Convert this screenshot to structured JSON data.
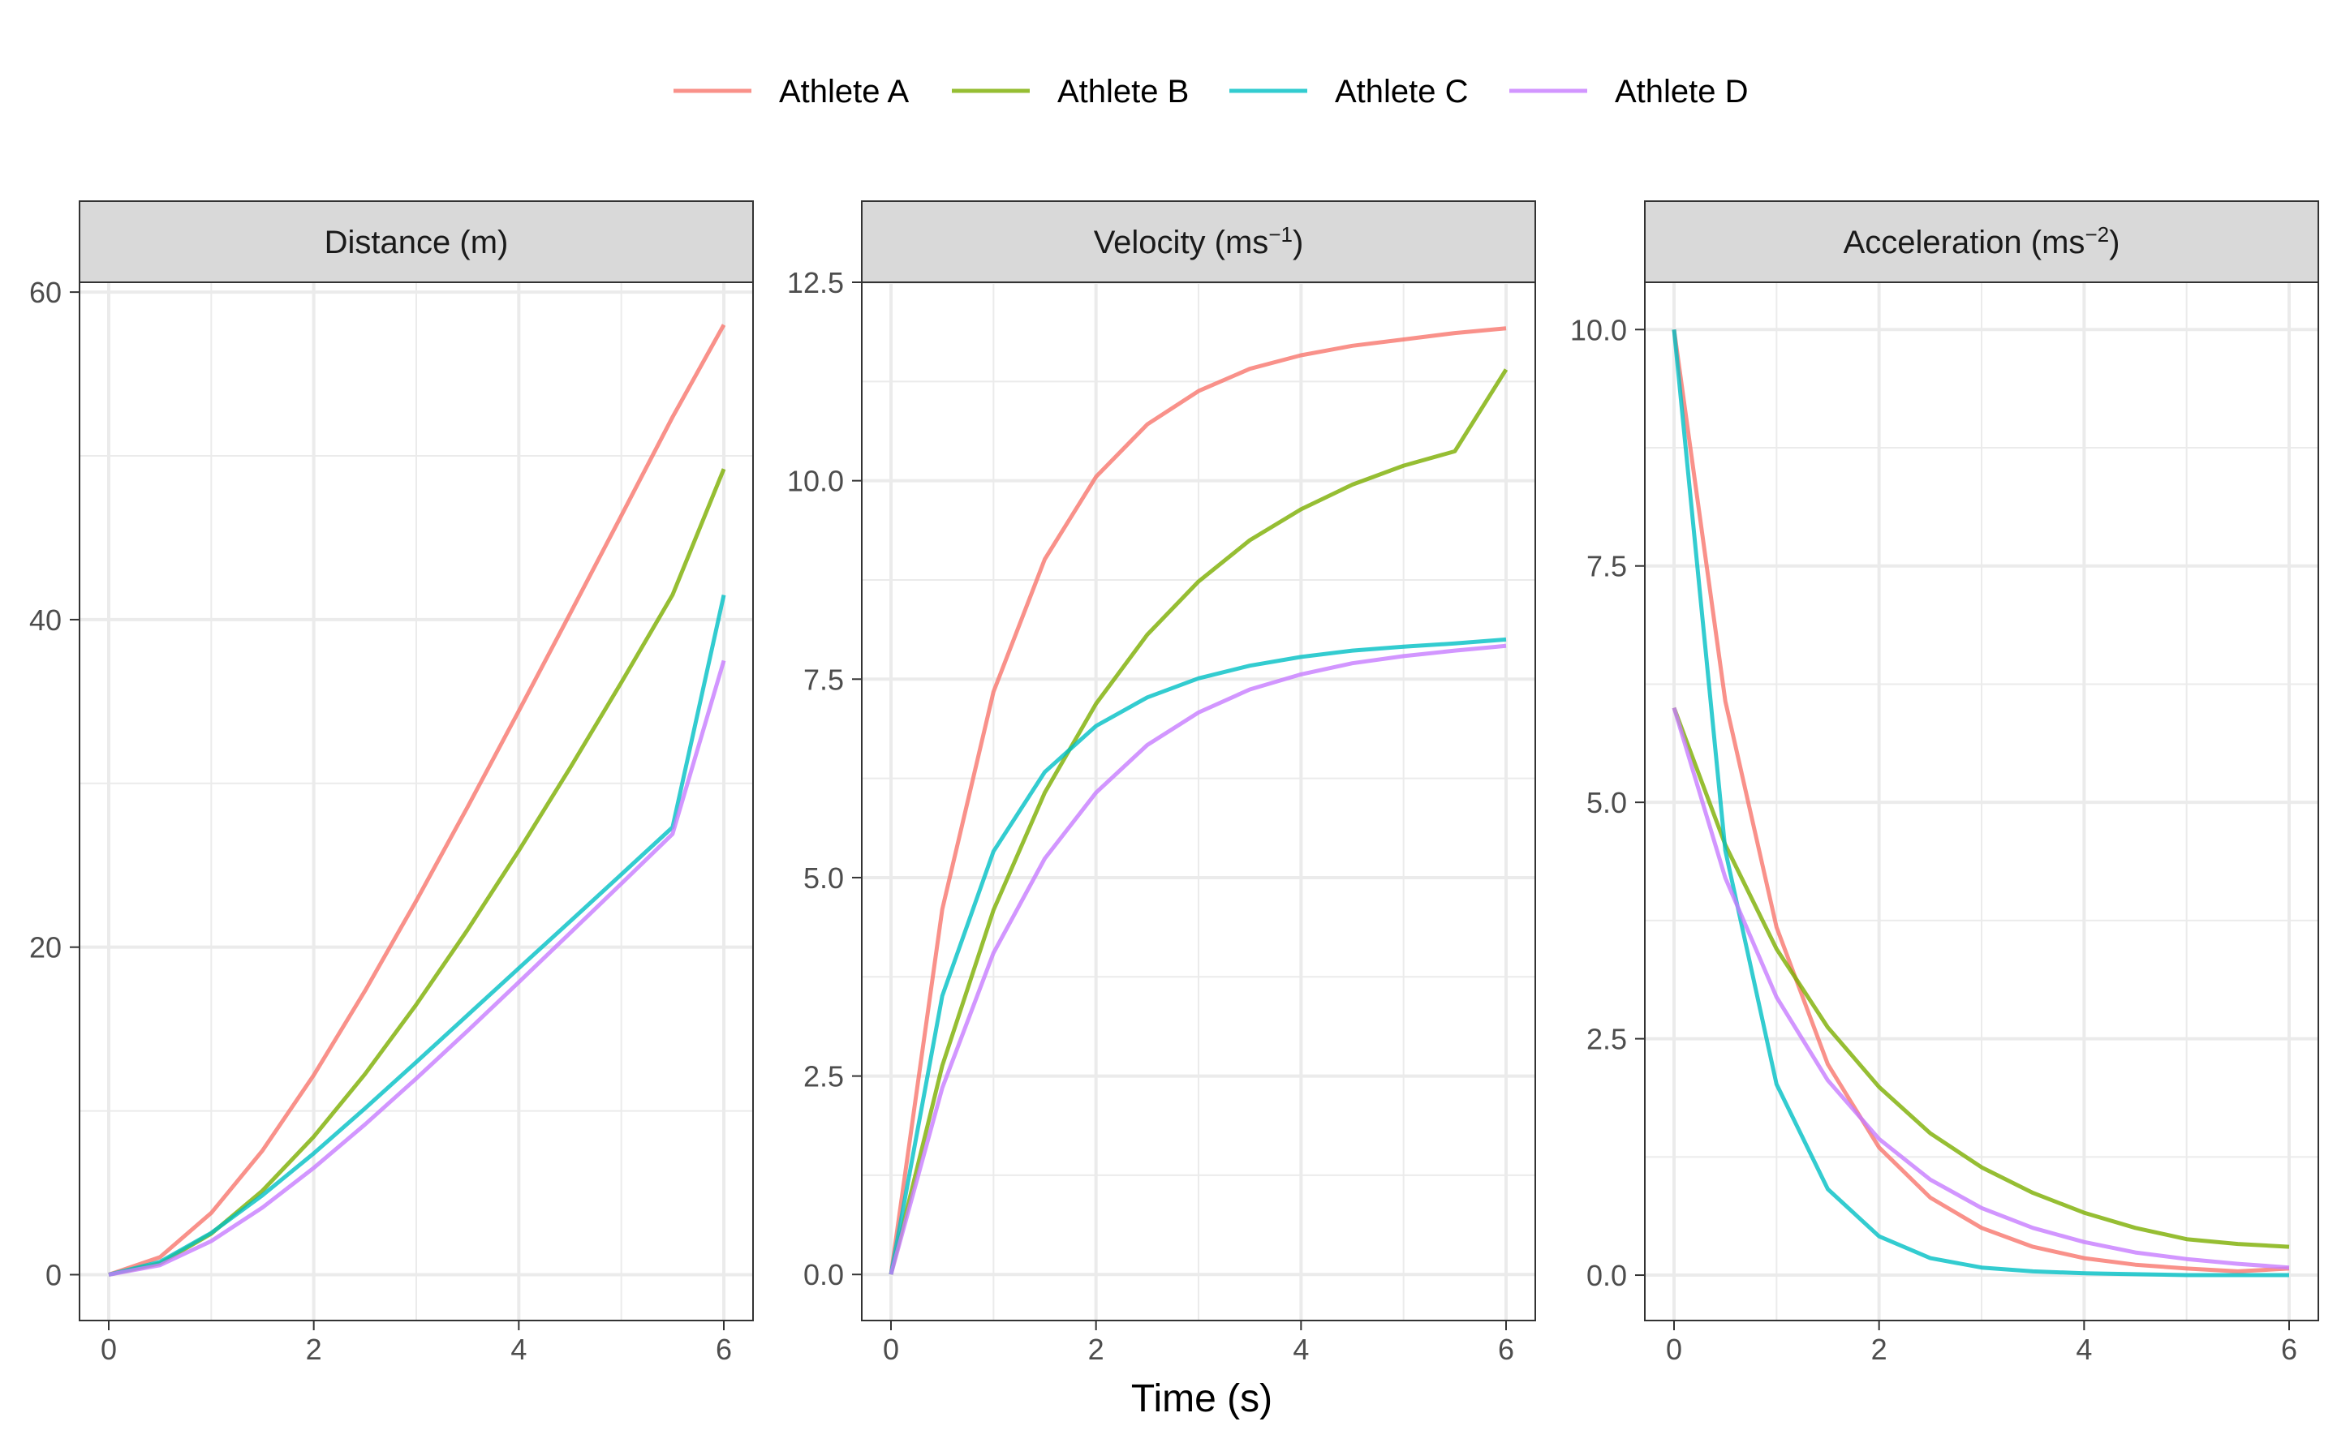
{
  "chart_data": {
    "type": "line",
    "xlabel": "Time (s)",
    "legend": {
      "placement": "top",
      "entries": [
        {
          "name": "Athlete A",
          "color": "#F8766D"
        },
        {
          "name": "Athlete B",
          "color": "#7CAE00"
        },
        {
          "name": "Athlete C",
          "color": "#00BFC4"
        },
        {
          "name": "Athlete D",
          "color": "#C77CFF"
        }
      ]
    },
    "grid": true,
    "x": [
      0,
      0.5,
      1,
      1.5,
      2,
      2.5,
      3,
      3.5,
      4,
      4.5,
      5,
      5.5,
      6
    ],
    "xlim": [
      0,
      6
    ],
    "xticks": [
      "0",
      "2",
      "4",
      "6"
    ],
    "panels": [
      {
        "title": "Distance (m)",
        "title_super": "",
        "ylim": [
          -2.8,
          60.6
        ],
        "yticks": [
          0,
          20,
          40,
          60
        ],
        "ytick_labels": [
          "0",
          "20",
          "40",
          "60"
        ],
        "series": [
          {
            "name": "Athlete A",
            "values": [
              0,
              1.07,
              3.77,
              7.58,
              12.19,
              17.33,
              22.83,
              28.56,
              34.42,
              40.36,
              46.35,
              52.37,
              58.0
            ]
          },
          {
            "name": "Athlete B",
            "values": [
              0,
              0.69,
              2.5,
              5.13,
              8.43,
              12.25,
              16.49,
              21.06,
              25.89,
              30.94,
              36.16,
              41.51,
              49.2
            ]
          },
          {
            "name": "Athlete C",
            "values": [
              0,
              0.78,
              2.55,
              4.85,
              7.41,
              10.15,
              12.98,
              15.85,
              18.71,
              21.57,
              24.44,
              27.32,
              41.5
            ]
          },
          {
            "name": "Athlete D",
            "values": [
              0,
              0.58,
              2.05,
              4.1,
              6.52,
              9.17,
              11.98,
              14.89,
              17.86,
              20.86,
              23.88,
              26.91,
              37.5
            ]
          }
        ]
      },
      {
        "title": "Velocity (ms",
        "title_super": "−1",
        "ylim": [
          -0.58,
          12.5
        ],
        "yticks": [
          0,
          2.5,
          5,
          7.5,
          10,
          12.5
        ],
        "ytick_labels": [
          "0.0",
          "2.5",
          "5.0",
          "7.5",
          "10.0",
          "12.5"
        ],
        "series": [
          {
            "name": "Athlete A",
            "values": [
              0,
              4.6,
              7.34,
              9.01,
              10.05,
              10.71,
              11.13,
              11.41,
              11.58,
              11.7,
              11.78,
              11.86,
              11.92
            ]
          },
          {
            "name": "Athlete B",
            "values": [
              0,
              2.63,
              4.59,
              6.07,
              7.19,
              8.06,
              8.73,
              9.25,
              9.64,
              9.95,
              10.19,
              10.37,
              11.4
            ]
          },
          {
            "name": "Athlete C",
            "values": [
              0,
              3.51,
              5.33,
              6.33,
              6.91,
              7.27,
              7.51,
              7.67,
              7.78,
              7.86,
              7.91,
              7.95,
              8.0
            ]
          },
          {
            "name": "Athlete D",
            "values": [
              0,
              2.35,
              4.05,
              5.24,
              6.07,
              6.67,
              7.08,
              7.37,
              7.56,
              7.7,
              7.79,
              7.86,
              7.92
            ]
          }
        ]
      },
      {
        "title": "Acceleration (ms",
        "title_super": "−2",
        "ylim": [
          -0.48,
          10.5
        ],
        "yticks": [
          0,
          2.5,
          5,
          7.5,
          10
        ],
        "ytick_labels": [
          "0.0",
          "2.5",
          "5.0",
          "7.5",
          "10.0"
        ],
        "series": [
          {
            "name": "Athlete A",
            "values": [
              10.0,
              6.07,
              3.68,
              2.23,
              1.35,
              0.82,
              0.5,
              0.3,
              0.18,
              0.11,
              0.07,
              0.04,
              0.07
            ]
          },
          {
            "name": "Athlete B",
            "values": [
              6.0,
              4.55,
              3.45,
              2.62,
              1.99,
              1.5,
              1.14,
              0.87,
              0.66,
              0.5,
              0.38,
              0.33,
              0.3
            ]
          },
          {
            "name": "Athlete C",
            "values": [
              10.0,
              4.49,
              2.02,
              0.91,
              0.41,
              0.18,
              0.08,
              0.04,
              0.02,
              0.01,
              0.0,
              0.0,
              0.0
            ]
          },
          {
            "name": "Athlete D",
            "values": [
              6.0,
              4.2,
              2.94,
              2.06,
              1.44,
              1.01,
              0.71,
              0.5,
              0.35,
              0.24,
              0.17,
              0.12,
              0.08
            ]
          }
        ]
      }
    ]
  }
}
